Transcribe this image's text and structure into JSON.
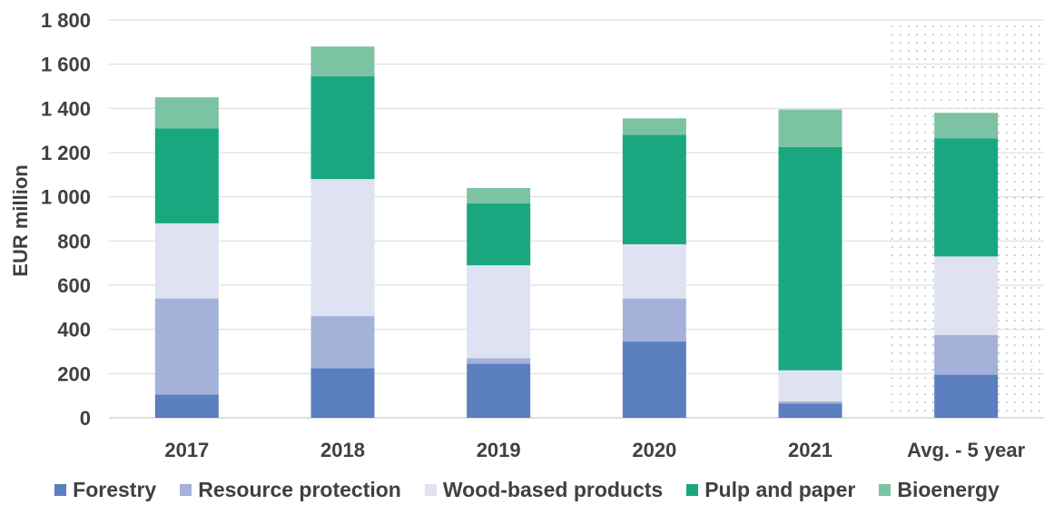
{
  "chart_data": {
    "type": "bar",
    "stacked": true,
    "title": "",
    "xlabel": "",
    "ylabel": "EUR million",
    "ylim": [
      0,
      1800
    ],
    "yticks": [
      0,
      200,
      400,
      600,
      800,
      1000,
      1200,
      1400,
      1600,
      1800
    ],
    "ytick_labels": [
      "0",
      "200",
      "400",
      "600",
      "800",
      "1 000",
      "1 200",
      "1 400",
      "1 600",
      "1 800"
    ],
    "grid": "horizontal",
    "legend_position": "bottom",
    "categories": [
      "2017",
      "2018",
      "2019",
      "2020",
      "2021",
      "Avg. - 5 year"
    ],
    "highlighted_category": "Avg. - 5 year",
    "series": [
      {
        "name": "Forestry",
        "color": "#5b7fbf",
        "values": [
          105,
          225,
          245,
          345,
          65,
          195
        ]
      },
      {
        "name": "Resource protection",
        "color": "#a4b2da",
        "values": [
          435,
          235,
          25,
          195,
          10,
          180
        ]
      },
      {
        "name": "Wood-based products",
        "color": "#dee2f2",
        "values": [
          340,
          620,
          420,
          245,
          140,
          355
        ]
      },
      {
        "name": "Pulp and paper",
        "color": "#1aa77f",
        "values": [
          430,
          465,
          280,
          495,
          1010,
          535
        ]
      },
      {
        "name": "Bioenergy",
        "color": "#7cc3a3",
        "values": [
          140,
          135,
          70,
          75,
          170,
          115
        ]
      }
    ]
  },
  "colors": {
    "text": "#404040",
    "grid": "#d9d9d9",
    "highlight_dots": "#9a9a9a"
  }
}
